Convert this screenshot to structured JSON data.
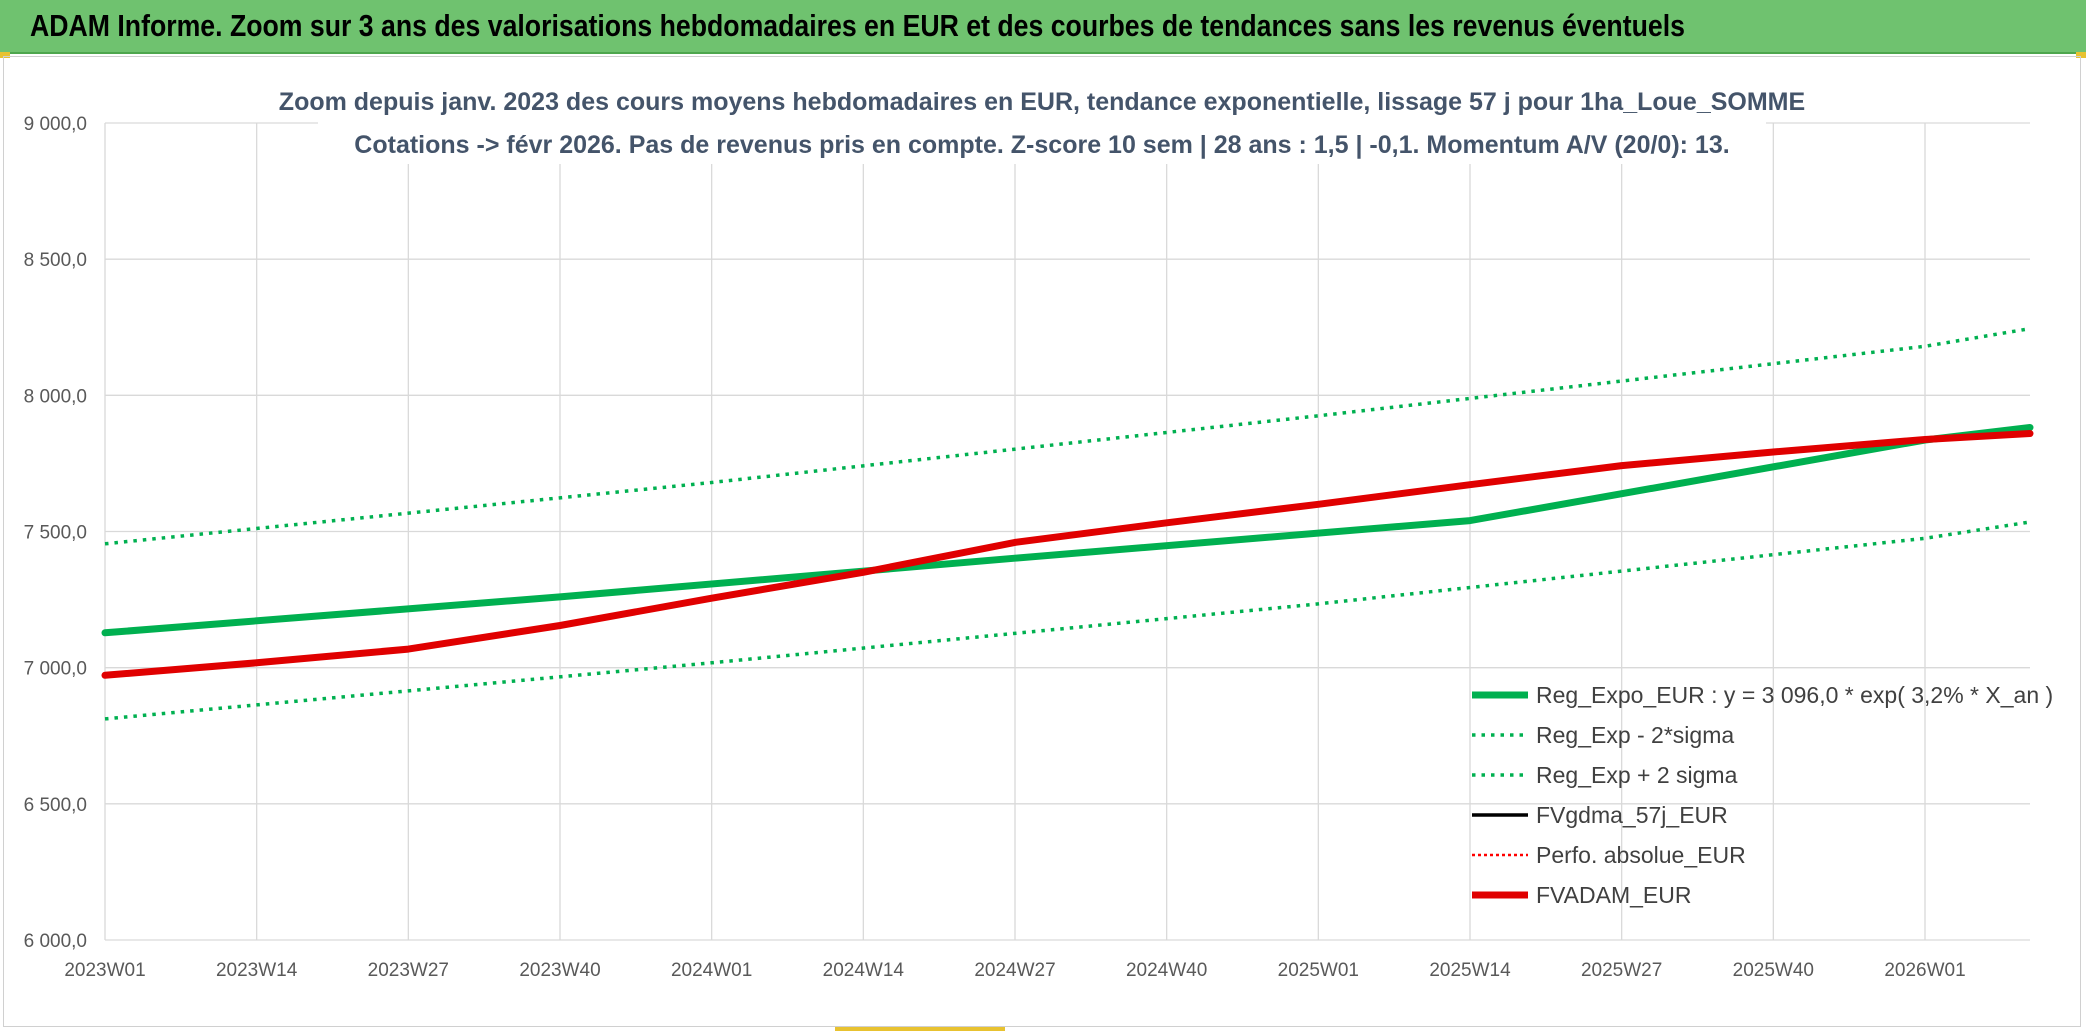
{
  "header": {
    "title": "ADAM Informe. Zoom sur 3 ans des valorisations hebdomadaires en EUR et des courbes de tendances sans les revenus éventuels"
  },
  "chart_data": {
    "type": "line",
    "title_line1": "Zoom depuis janv. 2023 des cours moyens hebdomadaires en EUR, tendance exponentielle, lissage 57 j pour 1ha_Loue_SOMME",
    "title_line2": "Cotations -> févr 2026. Pas de revenus pris en compte. Z-score 10 sem | 28 ans : 1,5 | -0,1. Momentum A/V (20/0): 13.",
    "xlabel": "",
    "ylabel": "",
    "x_ticks": [
      "2023W01",
      "2023W14",
      "2023W27",
      "2023W40",
      "2024W01",
      "2024W14",
      "2024W27",
      "2024W40",
      "2025W01",
      "2025W14",
      "2025W27",
      "2025W40",
      "2026W01"
    ],
    "y_ticks": [
      "6 000,0",
      "6 500,0",
      "7 000,0",
      "7 500,0",
      "8 000,0",
      "8 500,0",
      "9 000,0"
    ],
    "ylim": [
      6000,
      9000
    ],
    "grid": true,
    "legend_position": "bottom-right",
    "x_range_weeks": [
      0,
      165
    ],
    "series": [
      {
        "name": "Reg_Expo_EUR : y = 3 096,0 * exp( 3,2% *  X_an )",
        "color": "#00b050",
        "style": "solid-thick",
        "points": [
          [
            0,
            7128
          ],
          [
            39,
            7260
          ],
          [
            78,
            7402
          ],
          [
            117,
            7540
          ],
          [
            156,
            7836
          ],
          [
            165,
            7882
          ]
        ]
      },
      {
        "name": "Reg_Exp - 2*sigma",
        "color": "#00b050",
        "style": "dotted",
        "points": [
          [
            0,
            6812
          ],
          [
            52,
            7018
          ],
          [
            104,
            7234
          ],
          [
            156,
            7475
          ],
          [
            165,
            7535
          ]
        ]
      },
      {
        "name": "Reg_Exp + 2 sigma",
        "color": "#00b050",
        "style": "dotted",
        "points": [
          [
            0,
            7455
          ],
          [
            52,
            7680
          ],
          [
            104,
            7925
          ],
          [
            156,
            8180
          ],
          [
            165,
            8245
          ]
        ]
      },
      {
        "name": "FVgdma_57j_EUR",
        "color": "#000000",
        "style": "solid",
        "points": [
          [
            0,
            6972
          ],
          [
            13,
            7020
          ],
          [
            26,
            7072
          ],
          [
            39,
            7158
          ],
          [
            52,
            7258
          ],
          [
            65,
            7352
          ],
          [
            78,
            7462
          ],
          [
            91,
            7534
          ],
          [
            104,
            7600
          ],
          [
            117,
            7672
          ],
          [
            130,
            7740
          ],
          [
            143,
            7790
          ],
          [
            156,
            7836
          ],
          [
            165,
            7858
          ]
        ]
      },
      {
        "name": "Perfo. absolue_EUR",
        "color": "#ff0000",
        "style": "dotted-thin",
        "points": [
          [
            0,
            6972
          ],
          [
            13,
            7018
          ],
          [
            26,
            7068
          ],
          [
            39,
            7155
          ],
          [
            52,
            7255
          ],
          [
            65,
            7350
          ],
          [
            78,
            7460
          ],
          [
            91,
            7532
          ],
          [
            104,
            7600
          ],
          [
            117,
            7672
          ],
          [
            130,
            7742
          ],
          [
            143,
            7792
          ],
          [
            156,
            7838
          ],
          [
            165,
            7860
          ]
        ]
      },
      {
        "name": "FVADAM_EUR",
        "color": "#e00000",
        "style": "solid-thick",
        "points": [
          [
            0,
            6972
          ],
          [
            13,
            7018
          ],
          [
            26,
            7068
          ],
          [
            39,
            7155
          ],
          [
            52,
            7255
          ],
          [
            65,
            7350
          ],
          [
            78,
            7460
          ],
          [
            91,
            7532
          ],
          [
            104,
            7600
          ],
          [
            117,
            7672
          ],
          [
            130,
            7742
          ],
          [
            143,
            7792
          ],
          [
            156,
            7838
          ],
          [
            165,
            7860
          ]
        ]
      }
    ]
  }
}
